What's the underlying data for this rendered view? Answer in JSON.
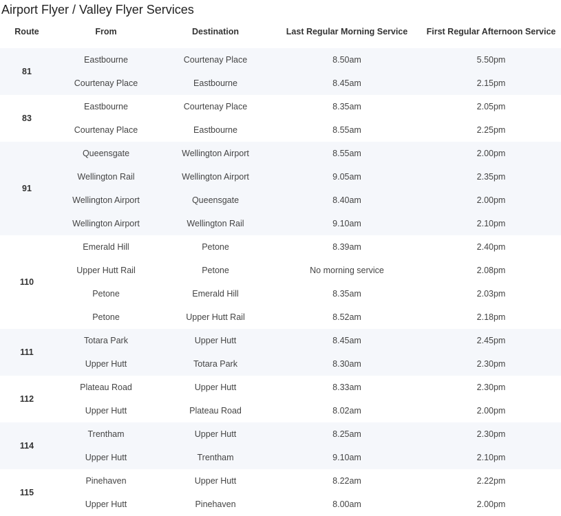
{
  "title": "Airport Flyer / Valley Flyer Services",
  "headers": [
    "Route",
    "From",
    "Destination",
    "Last Regular Morning Service",
    "First Regular Afternoon Service"
  ],
  "shade_color": "#f5f7fb",
  "groups": [
    {
      "route": "81",
      "rows": [
        [
          "Eastbourne",
          "Courtenay Place",
          "8.50am",
          "5.50pm"
        ],
        [
          "Courtenay Place",
          "Eastbourne",
          "8.45am",
          "2.15pm"
        ]
      ]
    },
    {
      "route": "83",
      "rows": [
        [
          "Eastbourne",
          "Courtenay Place",
          "8.35am",
          "2.05pm"
        ],
        [
          "Courtenay Place",
          "Eastbourne",
          "8.55am",
          "2.25pm"
        ]
      ]
    },
    {
      "route": "91",
      "rows": [
        [
          "Queensgate",
          "Wellington Airport",
          "8.55am",
          "2.00pm"
        ],
        [
          "Wellington Rail",
          "Wellington Airport",
          "9.05am",
          "2.35pm"
        ],
        [
          "Wellington Airport",
          "Queensgate",
          "8.40am",
          "2.00pm"
        ],
        [
          "Wellington Airport",
          "Wellington Rail",
          "9.10am",
          "2.10pm"
        ]
      ]
    },
    {
      "route": "110",
      "rows": [
        [
          "Emerald Hill",
          "Petone",
          "8.39am",
          "2.40pm"
        ],
        [
          "Upper Hutt Rail",
          "Petone",
          "No morning service",
          "2.08pm"
        ],
        [
          "Petone",
          "Emerald Hill",
          "8.35am",
          "2.03pm"
        ],
        [
          "Petone",
          "Upper Hutt Rail",
          "8.52am",
          "2.18pm"
        ]
      ]
    },
    {
      "route": "111",
      "rows": [
        [
          "Totara Park",
          "Upper Hutt",
          "8.45am",
          "2.45pm"
        ],
        [
          "Upper Hutt",
          "Totara Park",
          "8.30am",
          "2.30pm"
        ]
      ]
    },
    {
      "route": "112",
      "rows": [
        [
          "Plateau Road",
          "Upper Hutt",
          "8.33am",
          "2.30pm"
        ],
        [
          "Upper Hutt",
          "Plateau Road",
          "8.02am",
          "2.00pm"
        ]
      ]
    },
    {
      "route": "114",
      "rows": [
        [
          "Trentham",
          "Upper Hutt",
          "8.25am",
          "2.30pm"
        ],
        [
          "Upper Hutt",
          "Trentham",
          "9.10am",
          "2.10pm"
        ]
      ]
    },
    {
      "route": "115",
      "rows": [
        [
          "Pinehaven",
          "Upper Hutt",
          "8.22am",
          "2.22pm"
        ],
        [
          "Upper Hutt",
          "Pinehaven",
          "8.00am",
          "2.00pm"
        ]
      ]
    }
  ]
}
